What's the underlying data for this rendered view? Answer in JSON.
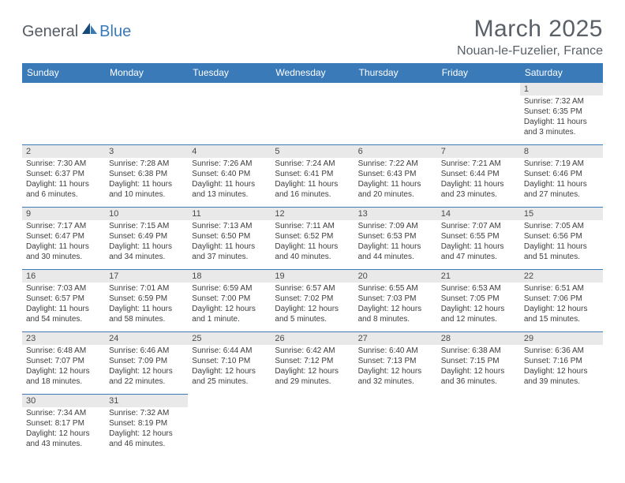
{
  "logo": {
    "general": "General",
    "blue": "Blue"
  },
  "title": "March 2025",
  "location": "Nouan-le-Fuzelier, France",
  "colors": {
    "header_bg": "#3a7ab8",
    "header_text": "#ffffff",
    "daynum_bg": "#e9e9e9",
    "border": "#3a7ab8",
    "title_color": "#5a6068"
  },
  "weekdays": [
    "Sunday",
    "Monday",
    "Tuesday",
    "Wednesday",
    "Thursday",
    "Friday",
    "Saturday"
  ],
  "labels": {
    "sunrise": "Sunrise: ",
    "sunset": "Sunset: ",
    "daylight": "Daylight: "
  },
  "grid": [
    [
      null,
      null,
      null,
      null,
      null,
      null,
      {
        "n": "1",
        "sr": "7:32 AM",
        "ss": "6:35 PM",
        "dl": "11 hours and 3 minutes."
      }
    ],
    [
      {
        "n": "2",
        "sr": "7:30 AM",
        "ss": "6:37 PM",
        "dl": "11 hours and 6 minutes."
      },
      {
        "n": "3",
        "sr": "7:28 AM",
        "ss": "6:38 PM",
        "dl": "11 hours and 10 minutes."
      },
      {
        "n": "4",
        "sr": "7:26 AM",
        "ss": "6:40 PM",
        "dl": "11 hours and 13 minutes."
      },
      {
        "n": "5",
        "sr": "7:24 AM",
        "ss": "6:41 PM",
        "dl": "11 hours and 16 minutes."
      },
      {
        "n": "6",
        "sr": "7:22 AM",
        "ss": "6:43 PM",
        "dl": "11 hours and 20 minutes."
      },
      {
        "n": "7",
        "sr": "7:21 AM",
        "ss": "6:44 PM",
        "dl": "11 hours and 23 minutes."
      },
      {
        "n": "8",
        "sr": "7:19 AM",
        "ss": "6:46 PM",
        "dl": "11 hours and 27 minutes."
      }
    ],
    [
      {
        "n": "9",
        "sr": "7:17 AM",
        "ss": "6:47 PM",
        "dl": "11 hours and 30 minutes."
      },
      {
        "n": "10",
        "sr": "7:15 AM",
        "ss": "6:49 PM",
        "dl": "11 hours and 34 minutes."
      },
      {
        "n": "11",
        "sr": "7:13 AM",
        "ss": "6:50 PM",
        "dl": "11 hours and 37 minutes."
      },
      {
        "n": "12",
        "sr": "7:11 AM",
        "ss": "6:52 PM",
        "dl": "11 hours and 40 minutes."
      },
      {
        "n": "13",
        "sr": "7:09 AM",
        "ss": "6:53 PM",
        "dl": "11 hours and 44 minutes."
      },
      {
        "n": "14",
        "sr": "7:07 AM",
        "ss": "6:55 PM",
        "dl": "11 hours and 47 minutes."
      },
      {
        "n": "15",
        "sr": "7:05 AM",
        "ss": "6:56 PM",
        "dl": "11 hours and 51 minutes."
      }
    ],
    [
      {
        "n": "16",
        "sr": "7:03 AM",
        "ss": "6:57 PM",
        "dl": "11 hours and 54 minutes."
      },
      {
        "n": "17",
        "sr": "7:01 AM",
        "ss": "6:59 PM",
        "dl": "11 hours and 58 minutes."
      },
      {
        "n": "18",
        "sr": "6:59 AM",
        "ss": "7:00 PM",
        "dl": "12 hours and 1 minute."
      },
      {
        "n": "19",
        "sr": "6:57 AM",
        "ss": "7:02 PM",
        "dl": "12 hours and 5 minutes."
      },
      {
        "n": "20",
        "sr": "6:55 AM",
        "ss": "7:03 PM",
        "dl": "12 hours and 8 minutes."
      },
      {
        "n": "21",
        "sr": "6:53 AM",
        "ss": "7:05 PM",
        "dl": "12 hours and 12 minutes."
      },
      {
        "n": "22",
        "sr": "6:51 AM",
        "ss": "7:06 PM",
        "dl": "12 hours and 15 minutes."
      }
    ],
    [
      {
        "n": "23",
        "sr": "6:48 AM",
        "ss": "7:07 PM",
        "dl": "12 hours and 18 minutes."
      },
      {
        "n": "24",
        "sr": "6:46 AM",
        "ss": "7:09 PM",
        "dl": "12 hours and 22 minutes."
      },
      {
        "n": "25",
        "sr": "6:44 AM",
        "ss": "7:10 PM",
        "dl": "12 hours and 25 minutes."
      },
      {
        "n": "26",
        "sr": "6:42 AM",
        "ss": "7:12 PM",
        "dl": "12 hours and 29 minutes."
      },
      {
        "n": "27",
        "sr": "6:40 AM",
        "ss": "7:13 PM",
        "dl": "12 hours and 32 minutes."
      },
      {
        "n": "28",
        "sr": "6:38 AM",
        "ss": "7:15 PM",
        "dl": "12 hours and 36 minutes."
      },
      {
        "n": "29",
        "sr": "6:36 AM",
        "ss": "7:16 PM",
        "dl": "12 hours and 39 minutes."
      }
    ],
    [
      {
        "n": "30",
        "sr": "7:34 AM",
        "ss": "8:17 PM",
        "dl": "12 hours and 43 minutes."
      },
      {
        "n": "31",
        "sr": "7:32 AM",
        "ss": "8:19 PM",
        "dl": "12 hours and 46 minutes."
      },
      null,
      null,
      null,
      null,
      null
    ]
  ]
}
